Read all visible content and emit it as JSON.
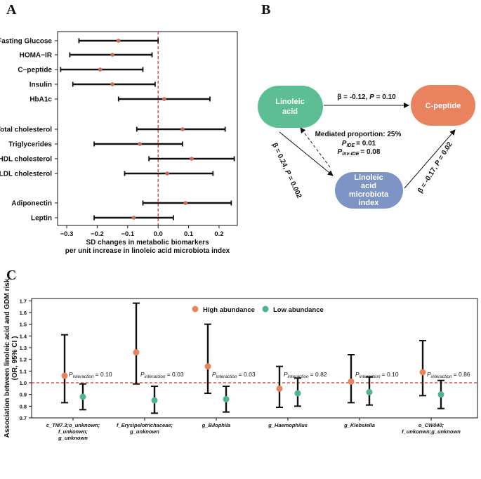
{
  "panels": {
    "a": "A",
    "b": "B",
    "c": "C"
  },
  "chart_data": [
    {
      "type": "forest",
      "title": "",
      "xlabel_line1": "SD changes in metabolic biomarkers",
      "xlabel_line2": "per unit increase in linoleic acid microbiota index",
      "xlim": [
        -0.33,
        0.26
      ],
      "xticks": [
        -0.3,
        -0.2,
        -0.1,
        0.0,
        0.1,
        0.2
      ],
      "xtick_labels": [
        "−0.3",
        "−0.2",
        "−0.1",
        "0.0",
        "0.1",
        "0.2"
      ],
      "reference_line": 0.0,
      "rows": [
        {
          "label": "Fasting Glucose",
          "est": -0.13,
          "lo": -0.26,
          "hi": 0.0
        },
        {
          "label": "HOMA−IR",
          "est": -0.15,
          "lo": -0.29,
          "hi": -0.02
        },
        {
          "label": "C−peptide",
          "est": -0.19,
          "lo": -0.32,
          "hi": -0.05
        },
        {
          "label": "Insulin",
          "est": -0.15,
          "lo": -0.28,
          "hi": -0.01
        },
        {
          "label": "HbA1c",
          "est": 0.02,
          "lo": -0.13,
          "hi": 0.17
        },
        {
          "label": "Total cholesterol",
          "est": 0.08,
          "lo": -0.07,
          "hi": 0.22
        },
        {
          "label": "Triglycerides",
          "est": -0.06,
          "lo": -0.21,
          "hi": 0.08
        },
        {
          "label": "HDL cholesterol",
          "est": 0.11,
          "lo": -0.03,
          "hi": 0.25
        },
        {
          "label": "LDL cholesterol",
          "est": 0.03,
          "lo": -0.11,
          "hi": 0.18
        },
        {
          "label": "Adiponectin",
          "est": 0.09,
          "lo": -0.05,
          "hi": 0.24
        },
        {
          "label": "Leptin",
          "est": -0.08,
          "lo": -0.21,
          "hi": 0.05
        }
      ]
    },
    {
      "type": "diagram",
      "nodes": {
        "linoleic": {
          "line1": "Linoleic",
          "line2": "acid",
          "color": "#5dbd95"
        },
        "cpeptide": {
          "line1": "C-peptide",
          "color": "#e9825e"
        },
        "index": {
          "line1": "Linoleic",
          "line2": "acid",
          "line3": "microbiota",
          "line4": "index",
          "color": "#7e94c4"
        }
      },
      "edges": {
        "top": {
          "beta": "β = -0.12,",
          "p_label": "P",
          "p_value": "= 0.10"
        },
        "left": {
          "beta": "β = 0.24,",
          "p_label": "P",
          "p_value": "= 0.002"
        },
        "right": {
          "beta": "β = -0.17,",
          "p_label": "P",
          "p_value": "= 0.02"
        }
      },
      "mediation": {
        "line1": "Mediated proportion: 25%",
        "p_label": "P",
        "ide_sub": "IDE",
        "ide_value": "= 0.01",
        "invide_sub": "inv-IDE",
        "invide_value": "= 0.08"
      }
    },
    {
      "type": "errorbar",
      "ylabel_line1": "Association between linoleic acid and GDM risk",
      "ylabel_line2": "(OR, 95% CI )",
      "ylim": [
        0.7,
        1.72
      ],
      "yticks": [
        0.7,
        0.8,
        0.9,
        1.0,
        1.1,
        1.2,
        1.3,
        1.4,
        1.5,
        1.6,
        1.7
      ],
      "ytick_labels": [
        "0.7",
        "0.8",
        "0.9",
        "1.0",
        "1.1",
        "1.2",
        "1.3",
        "1.4",
        "1.5",
        "1.6",
        "1.7"
      ],
      "reference_line": 1.0,
      "legend": [
        {
          "name": "High abundance",
          "color": "#e9825e"
        },
        {
          "name": "Low abundance",
          "color": "#4fb396"
        }
      ],
      "p_label": "P",
      "p_sub": "interaction",
      "groups": [
        {
          "label_line1": "c_TM7.3;o_unknown;",
          "label_line2": "f_unkonwn;",
          "label_line3": "g_unknown",
          "high": {
            "est": 1.06,
            "lo": 0.83,
            "hi": 1.41
          },
          "low": {
            "est": 0.88,
            "lo": 0.77,
            "hi": 0.99
          },
          "p": "= 0.10"
        },
        {
          "label_line1": "f_Erysipelotrichaceae;",
          "label_line2": "g_unknown",
          "label_line3": "",
          "high": {
            "est": 1.26,
            "lo": 0.99,
            "hi": 1.68
          },
          "low": {
            "est": 0.85,
            "lo": 0.74,
            "hi": 0.97
          },
          "p": "= 0.03"
        },
        {
          "label_line1": "g_Bilophila",
          "label_line2": "",
          "label_line3": "",
          "high": {
            "est": 1.14,
            "lo": 0.91,
            "hi": 1.5
          },
          "low": {
            "est": 0.86,
            "lo": 0.75,
            "hi": 0.97
          },
          "p": "= 0.03"
        },
        {
          "label_line1": "g_Haemophilus",
          "label_line2": "",
          "label_line3": "",
          "high": {
            "est": 0.95,
            "lo": 0.79,
            "hi": 1.14
          },
          "low": {
            "est": 0.91,
            "lo": 0.8,
            "hi": 1.04
          },
          "p": "= 0.82"
        },
        {
          "label_line1": "g_Klebsiella",
          "label_line2": "",
          "label_line3": "",
          "high": {
            "est": 1.01,
            "lo": 0.83,
            "hi": 1.24
          },
          "low": {
            "est": 0.92,
            "lo": 0.81,
            "hi": 1.05
          },
          "p": "= 0.10"
        },
        {
          "label_line1": "o_CW040;",
          "label_line2": "f_unkonwn;g_unknown",
          "label_line3": "",
          "high": {
            "est": 1.09,
            "lo": 0.89,
            "hi": 1.36
          },
          "low": {
            "est": 0.9,
            "lo": 0.78,
            "hi": 1.02
          },
          "p": "= 0.86"
        }
      ]
    }
  ]
}
